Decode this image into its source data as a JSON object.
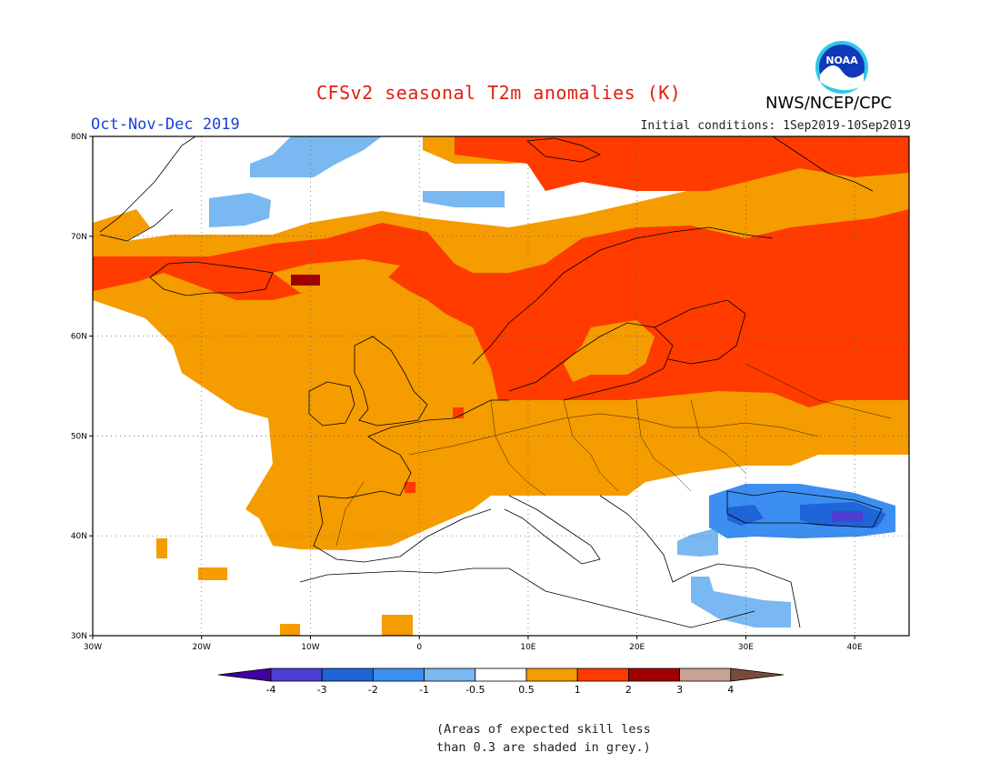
{
  "header": {
    "title": "CFSv2 seasonal T2m anomalies (K)",
    "season": "Oct-Nov-Dec 2019",
    "initial_conditions": "Initial conditions: 1Sep2019-10Sep2019",
    "agency": "NWS/NCEP/CPC",
    "logo_text": "NOAA"
  },
  "map": {
    "projection": "lat-lon",
    "lon_range": [
      -30,
      45
    ],
    "lat_range": [
      30,
      80
    ],
    "lon_ticks": [
      "30W",
      "20W",
      "10W",
      "0",
      "10E",
      "20E",
      "30E",
      "40E"
    ],
    "lat_ticks": [
      "80N",
      "70N",
      "60N",
      "50N",
      "40N",
      "30N"
    ],
    "grid": "dotted"
  },
  "legend": {
    "labels": [
      "-4",
      "-3",
      "-2",
      "-1",
      "-0.5",
      "0.5",
      "1",
      "2",
      "3",
      "4"
    ],
    "colors": [
      "#4400a0",
      "#4b3fd4",
      "#1f64d8",
      "#3c8ef0",
      "#7ab8f2",
      "#ffffff",
      "#f59c00",
      "#ff3b00",
      "#a00000",
      "#c7a396",
      "#7b4a3a"
    ]
  },
  "footnote": {
    "line1": "(Areas of expected skill less",
    "line2": "than 0.3 are shaded in grey.)"
  }
}
